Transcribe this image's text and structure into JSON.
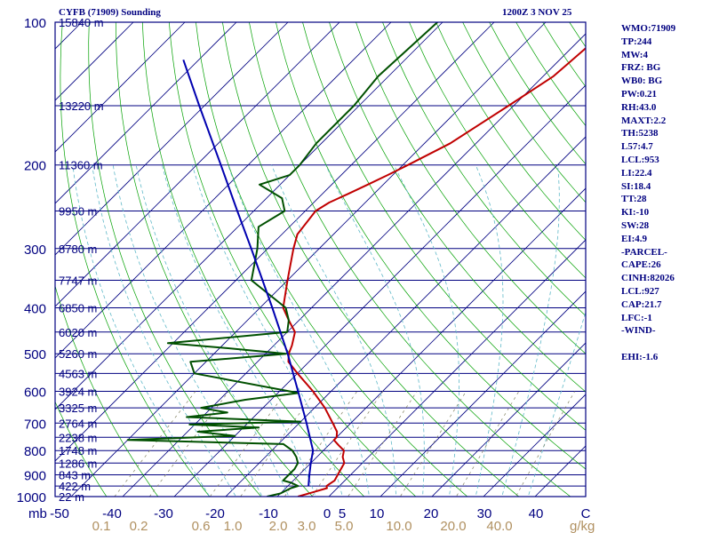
{
  "header": {
    "title_left": "CYFB (71909) Sounding",
    "title_right": "1200Z  3 NOV 25"
  },
  "side_panel": [
    "WMO:71909",
    "TP:244",
    "MW:4",
    "FRZ: BG",
    "WB0: BG",
    "PW:0.21",
    "RH:43.0",
    "MAXT:2.2",
    "TH:5238",
    "L57:4.7",
    "LCL:953",
    "LI:22.4",
    "SI:18.4",
    "TT:28",
    "KI:-10",
    "SW:28",
    "EI:4.9",
    "-PARCEL-",
    "CAPE:26",
    "CINH:82026",
    "LCL:927",
    "CAP:21.7",
    "LFC:-1",
    "-WIND-",
    "",
    "EHI:-1.6"
  ],
  "colors": {
    "frame": "#000080",
    "isobar": "#000080",
    "isotherm": "#000080",
    "dry_adiabat": "#00a000",
    "moist_adiabat": "#5fb8c8",
    "mixing_ratio": "#808060",
    "temperature": "#c00000",
    "dewpoint": "#005000",
    "parcel": "#0000b0",
    "mixing_label": "#b09060"
  },
  "chart_data": {
    "type": "line",
    "title": "CYFB (71909) Sounding",
    "xlabel": "",
    "ylabel": "mb",
    "pressure_levels": [
      100,
      200,
      300,
      400,
      500,
      600,
      700,
      800,
      900,
      1000
    ],
    "y_ticks": [
      "100",
      "200",
      "300",
      "400",
      "500",
      "600",
      "700",
      "800",
      "900",
      "1000"
    ],
    "y_unit": "mb",
    "x_ticks": [
      "-50",
      "-40",
      "-30",
      "-20",
      "-10",
      "0",
      "5",
      "10",
      "20",
      "30",
      "40",
      "C"
    ],
    "mixing_ratio_labels": [
      "0.1",
      "0.2",
      "0.6",
      "1.0",
      "2.0",
      "3.0",
      "5.0",
      "10.0",
      "20.0",
      "40.0"
    ],
    "mixing_ratio_unit": "g/kg",
    "height_labels": [
      {
        "p": 100,
        "text": "15840 m"
      },
      {
        "p": 150,
        "text": "13220 m"
      },
      {
        "p": 200,
        "text": "11360 m"
      },
      {
        "p": 250,
        "text": "9950 m"
      },
      {
        "p": 300,
        "text": "8780 m"
      },
      {
        "p": 350,
        "text": "7747 m"
      },
      {
        "p": 400,
        "text": "6850 m"
      },
      {
        "p": 450,
        "text": "6020 m"
      },
      {
        "p": 500,
        "text": "5260 m"
      },
      {
        "p": 550,
        "text": "4563 m"
      },
      {
        "p": 600,
        "text": "3924 m"
      },
      {
        "p": 650,
        "text": "3325 m"
      },
      {
        "p": 700,
        "text": "2764 m"
      },
      {
        "p": 750,
        "text": "2238 m"
      },
      {
        "p": 800,
        "text": "1748 m"
      },
      {
        "p": 850,
        "text": "1286 m"
      },
      {
        "p": 900,
        "text": "843 m"
      },
      {
        "p": 950,
        "text": "422 m"
      },
      {
        "p": 1000,
        "text": "22 m"
      }
    ],
    "series": [
      {
        "key": "temperature",
        "points": [
          [
            1000,
            -6
          ],
          [
            980,
            -4
          ],
          [
            960,
            -2
          ],
          [
            950,
            -2.5
          ],
          [
            925,
            -2
          ],
          [
            900,
            -2.5
          ],
          [
            875,
            -3
          ],
          [
            850,
            -3.5
          ],
          [
            825,
            -5
          ],
          [
            800,
            -6
          ],
          [
            780,
            -8
          ],
          [
            760,
            -10
          ],
          [
            750,
            -10
          ],
          [
            730,
            -11
          ],
          [
            700,
            -13.5
          ],
          [
            650,
            -18
          ],
          [
            600,
            -23.5
          ],
          [
            550,
            -30
          ],
          [
            520,
            -34
          ],
          [
            500,
            -35.5
          ],
          [
            480,
            -36.5
          ],
          [
            450,
            -38.5
          ],
          [
            425,
            -42
          ],
          [
            400,
            -45.5
          ],
          [
            350,
            -50
          ],
          [
            300,
            -55
          ],
          [
            280,
            -57
          ],
          [
            250,
            -58
          ],
          [
            240,
            -57
          ],
          [
            230,
            -55
          ],
          [
            220,
            -53
          ],
          [
            210,
            -51
          ],
          [
            200,
            -49
          ],
          [
            180,
            -45
          ],
          [
            150,
            -41
          ],
          [
            130,
            -38
          ],
          [
            110,
            -37
          ],
          [
            100,
            -38
          ]
        ]
      },
      {
        "key": "dewpoint",
        "points": [
          [
            1000,
            -12
          ],
          [
            985,
            -10
          ],
          [
            960,
            -9
          ],
          [
            950,
            -8
          ],
          [
            935,
            -10
          ],
          [
            925,
            -12
          ],
          [
            900,
            -12
          ],
          [
            875,
            -12
          ],
          [
            850,
            -12.5
          ],
          [
            825,
            -14
          ],
          [
            800,
            -16
          ],
          [
            775,
            -19
          ],
          [
            760,
            -50
          ],
          [
            745,
            -30
          ],
          [
            730,
            -38
          ],
          [
            715,
            -27
          ],
          [
            705,
            -41
          ],
          [
            695,
            -20
          ],
          [
            680,
            -43
          ],
          [
            665,
            -36
          ],
          [
            650,
            -42
          ],
          [
            625,
            -35
          ],
          [
            605,
            -26
          ],
          [
            550,
            -50
          ],
          [
            520,
            -53
          ],
          [
            500,
            -36
          ],
          [
            485,
            -50
          ],
          [
            475,
            -61
          ],
          [
            450,
            -40
          ],
          [
            425,
            -42
          ],
          [
            400,
            -45
          ],
          [
            350,
            -57
          ],
          [
            300,
            -62
          ],
          [
            270,
            -66
          ],
          [
            250,
            -64
          ],
          [
            235,
            -67
          ],
          [
            220,
            -74
          ],
          [
            210,
            -70
          ],
          [
            200,
            -70
          ],
          [
            180,
            -71
          ],
          [
            150,
            -71
          ],
          [
            130,
            -72
          ],
          [
            100,
            -71
          ]
        ]
      },
      {
        "key": "parcel",
        "points": [
          [
            950,
            -6
          ],
          [
            900,
            -8
          ],
          [
            850,
            -10
          ],
          [
            800,
            -12
          ],
          [
            700,
            -18.6
          ],
          [
            600,
            -26.4
          ],
          [
            500,
            -35.7
          ],
          [
            400,
            -47.6
          ],
          [
            300,
            -63.2
          ],
          [
            250,
            -73.2
          ],
          [
            200,
            -85.3
          ],
          [
            150,
            -101
          ],
          [
            120,
            -113
          ]
        ]
      }
    ],
    "ylim": [
      1000,
      100
    ],
    "xlim": [
      -50,
      50
    ],
    "grid": true
  }
}
